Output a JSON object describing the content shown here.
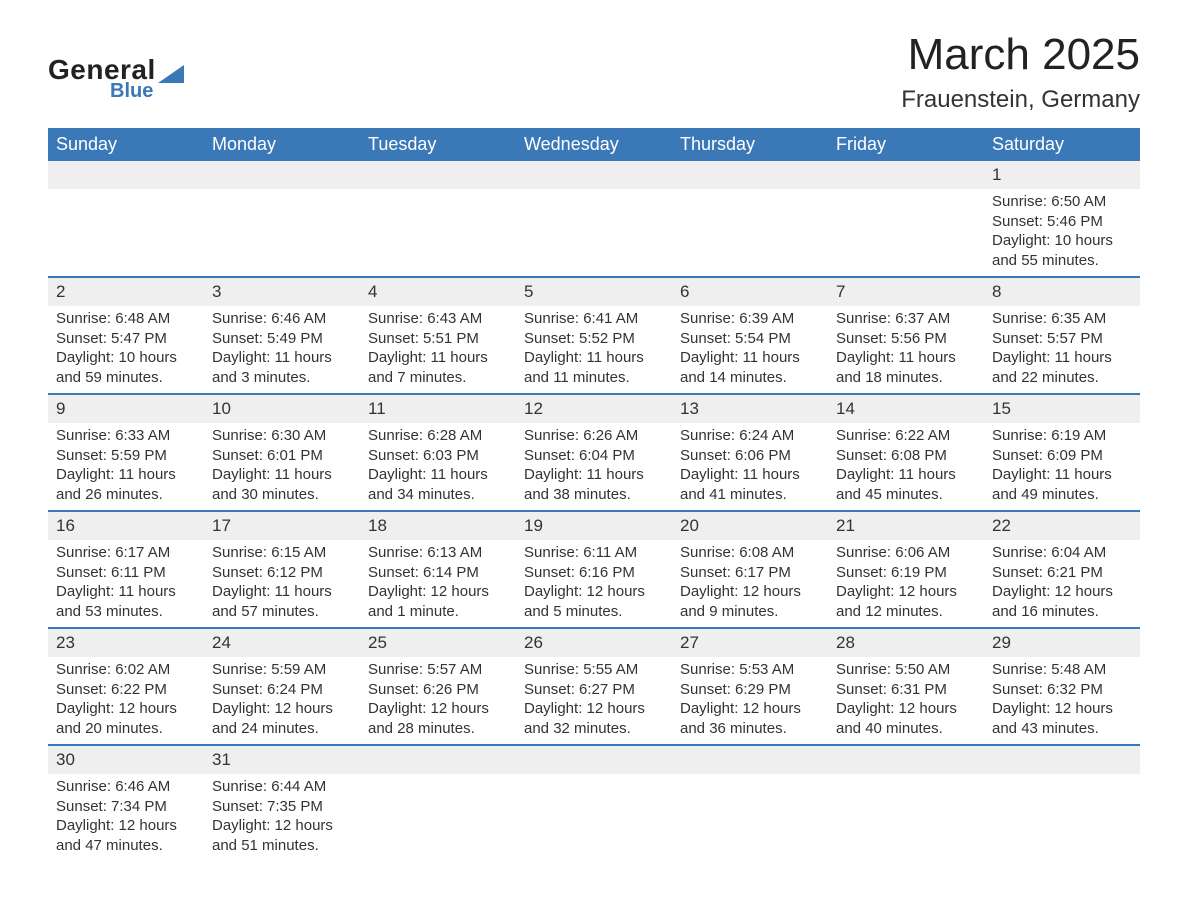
{
  "logo": {
    "main": "General",
    "sub": "Blue"
  },
  "title": "March 2025",
  "location": "Frauenstein, Germany",
  "colors": {
    "header_bg": "#3a78b8",
    "header_fg": "#ffffff",
    "daynum_bg": "#efefef",
    "text": "#333333",
    "row_border": "#3a78b8",
    "page_bg": "#ffffff"
  },
  "fonts": {
    "title_size_pt": 33,
    "location_size_pt": 18,
    "header_size_pt": 14,
    "body_size_pt": 11
  },
  "day_headers": [
    "Sunday",
    "Monday",
    "Tuesday",
    "Wednesday",
    "Thursday",
    "Friday",
    "Saturday"
  ],
  "weeks": [
    [
      null,
      null,
      null,
      null,
      null,
      null,
      {
        "n": "1",
        "sunrise": "Sunrise: 6:50 AM",
        "sunset": "Sunset: 5:46 PM",
        "daylight": "Daylight: 10 hours and 55 minutes."
      }
    ],
    [
      {
        "n": "2",
        "sunrise": "Sunrise: 6:48 AM",
        "sunset": "Sunset: 5:47 PM",
        "daylight": "Daylight: 10 hours and 59 minutes."
      },
      {
        "n": "3",
        "sunrise": "Sunrise: 6:46 AM",
        "sunset": "Sunset: 5:49 PM",
        "daylight": "Daylight: 11 hours and 3 minutes."
      },
      {
        "n": "4",
        "sunrise": "Sunrise: 6:43 AM",
        "sunset": "Sunset: 5:51 PM",
        "daylight": "Daylight: 11 hours and 7 minutes."
      },
      {
        "n": "5",
        "sunrise": "Sunrise: 6:41 AM",
        "sunset": "Sunset: 5:52 PM",
        "daylight": "Daylight: 11 hours and 11 minutes."
      },
      {
        "n": "6",
        "sunrise": "Sunrise: 6:39 AM",
        "sunset": "Sunset: 5:54 PM",
        "daylight": "Daylight: 11 hours and 14 minutes."
      },
      {
        "n": "7",
        "sunrise": "Sunrise: 6:37 AM",
        "sunset": "Sunset: 5:56 PM",
        "daylight": "Daylight: 11 hours and 18 minutes."
      },
      {
        "n": "8",
        "sunrise": "Sunrise: 6:35 AM",
        "sunset": "Sunset: 5:57 PM",
        "daylight": "Daylight: 11 hours and 22 minutes."
      }
    ],
    [
      {
        "n": "9",
        "sunrise": "Sunrise: 6:33 AM",
        "sunset": "Sunset: 5:59 PM",
        "daylight": "Daylight: 11 hours and 26 minutes."
      },
      {
        "n": "10",
        "sunrise": "Sunrise: 6:30 AM",
        "sunset": "Sunset: 6:01 PM",
        "daylight": "Daylight: 11 hours and 30 minutes."
      },
      {
        "n": "11",
        "sunrise": "Sunrise: 6:28 AM",
        "sunset": "Sunset: 6:03 PM",
        "daylight": "Daylight: 11 hours and 34 minutes."
      },
      {
        "n": "12",
        "sunrise": "Sunrise: 6:26 AM",
        "sunset": "Sunset: 6:04 PM",
        "daylight": "Daylight: 11 hours and 38 minutes."
      },
      {
        "n": "13",
        "sunrise": "Sunrise: 6:24 AM",
        "sunset": "Sunset: 6:06 PM",
        "daylight": "Daylight: 11 hours and 41 minutes."
      },
      {
        "n": "14",
        "sunrise": "Sunrise: 6:22 AM",
        "sunset": "Sunset: 6:08 PM",
        "daylight": "Daylight: 11 hours and 45 minutes."
      },
      {
        "n": "15",
        "sunrise": "Sunrise: 6:19 AM",
        "sunset": "Sunset: 6:09 PM",
        "daylight": "Daylight: 11 hours and 49 minutes."
      }
    ],
    [
      {
        "n": "16",
        "sunrise": "Sunrise: 6:17 AM",
        "sunset": "Sunset: 6:11 PM",
        "daylight": "Daylight: 11 hours and 53 minutes."
      },
      {
        "n": "17",
        "sunrise": "Sunrise: 6:15 AM",
        "sunset": "Sunset: 6:12 PM",
        "daylight": "Daylight: 11 hours and 57 minutes."
      },
      {
        "n": "18",
        "sunrise": "Sunrise: 6:13 AM",
        "sunset": "Sunset: 6:14 PM",
        "daylight": "Daylight: 12 hours and 1 minute."
      },
      {
        "n": "19",
        "sunrise": "Sunrise: 6:11 AM",
        "sunset": "Sunset: 6:16 PM",
        "daylight": "Daylight: 12 hours and 5 minutes."
      },
      {
        "n": "20",
        "sunrise": "Sunrise: 6:08 AM",
        "sunset": "Sunset: 6:17 PM",
        "daylight": "Daylight: 12 hours and 9 minutes."
      },
      {
        "n": "21",
        "sunrise": "Sunrise: 6:06 AM",
        "sunset": "Sunset: 6:19 PM",
        "daylight": "Daylight: 12 hours and 12 minutes."
      },
      {
        "n": "22",
        "sunrise": "Sunrise: 6:04 AM",
        "sunset": "Sunset: 6:21 PM",
        "daylight": "Daylight: 12 hours and 16 minutes."
      }
    ],
    [
      {
        "n": "23",
        "sunrise": "Sunrise: 6:02 AM",
        "sunset": "Sunset: 6:22 PM",
        "daylight": "Daylight: 12 hours and 20 minutes."
      },
      {
        "n": "24",
        "sunrise": "Sunrise: 5:59 AM",
        "sunset": "Sunset: 6:24 PM",
        "daylight": "Daylight: 12 hours and 24 minutes."
      },
      {
        "n": "25",
        "sunrise": "Sunrise: 5:57 AM",
        "sunset": "Sunset: 6:26 PM",
        "daylight": "Daylight: 12 hours and 28 minutes."
      },
      {
        "n": "26",
        "sunrise": "Sunrise: 5:55 AM",
        "sunset": "Sunset: 6:27 PM",
        "daylight": "Daylight: 12 hours and 32 minutes."
      },
      {
        "n": "27",
        "sunrise": "Sunrise: 5:53 AM",
        "sunset": "Sunset: 6:29 PM",
        "daylight": "Daylight: 12 hours and 36 minutes."
      },
      {
        "n": "28",
        "sunrise": "Sunrise: 5:50 AM",
        "sunset": "Sunset: 6:31 PM",
        "daylight": "Daylight: 12 hours and 40 minutes."
      },
      {
        "n": "29",
        "sunrise": "Sunrise: 5:48 AM",
        "sunset": "Sunset: 6:32 PM",
        "daylight": "Daylight: 12 hours and 43 minutes."
      }
    ],
    [
      {
        "n": "30",
        "sunrise": "Sunrise: 6:46 AM",
        "sunset": "Sunset: 7:34 PM",
        "daylight": "Daylight: 12 hours and 47 minutes."
      },
      {
        "n": "31",
        "sunrise": "Sunrise: 6:44 AM",
        "sunset": "Sunset: 7:35 PM",
        "daylight": "Daylight: 12 hours and 51 minutes."
      },
      null,
      null,
      null,
      null,
      null
    ]
  ]
}
